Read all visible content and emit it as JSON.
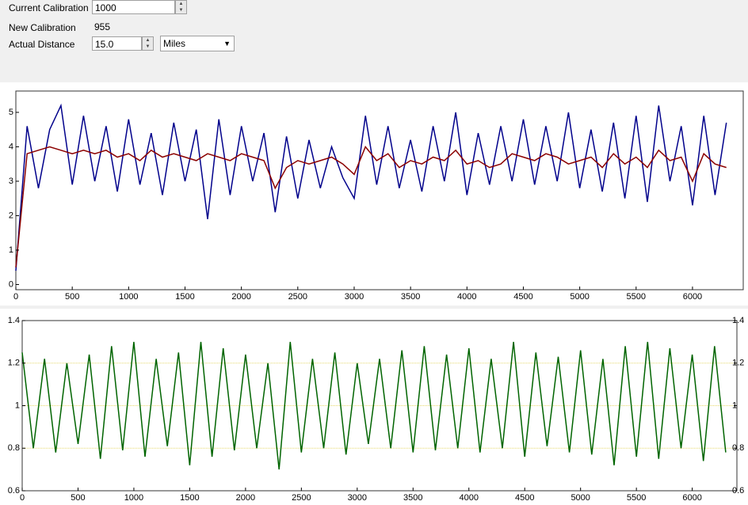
{
  "form": {
    "current_calibration": {
      "label": "Current Calibration",
      "value": "1000"
    },
    "new_calibration": {
      "label": "New Calibration",
      "value": "955"
    },
    "actual_distance": {
      "label": "Actual Distance",
      "value": "15.0",
      "unit": "Miles"
    }
  },
  "chart_data": [
    {
      "type": "line",
      "x": [
        0,
        100,
        200,
        300,
        400,
        500,
        600,
        700,
        800,
        900,
        1000,
        1100,
        1200,
        1300,
        1400,
        1500,
        1600,
        1700,
        1800,
        1900,
        2000,
        2100,
        2200,
        2300,
        2400,
        2500,
        2600,
        2700,
        2800,
        2900,
        3000,
        3100,
        3200,
        3300,
        3400,
        3500,
        3600,
        3700,
        3800,
        3900,
        4000,
        4100,
        4200,
        4300,
        4400,
        4500,
        4600,
        4700,
        4800,
        4900,
        5000,
        5100,
        5200,
        5300,
        5400,
        5500,
        5600,
        5700,
        5800,
        5900,
        6000,
        6100,
        6200,
        6300
      ],
      "series": [
        {
          "color": "#00008b",
          "values": [
            0.4,
            4.6,
            2.8,
            4.5,
            5.2,
            2.9,
            4.9,
            3.0,
            4.6,
            2.7,
            4.8,
            2.9,
            4.4,
            2.6,
            4.7,
            3.0,
            4.5,
            1.9,
            4.8,
            2.6,
            4.6,
            3.0,
            4.4,
            2.1,
            4.3,
            2.5,
            4.2,
            2.8,
            4.0,
            3.1,
            2.5,
            4.9,
            2.9,
            4.6,
            2.8,
            4.2,
            2.7,
            4.6,
            3.0,
            5.0,
            2.6,
            4.4,
            2.9,
            4.6,
            3.0,
            4.8,
            2.9,
            4.6,
            3.0,
            5.0,
            2.8,
            4.5,
            2.7,
            4.7,
            2.5,
            4.9,
            2.4,
            5.2,
            3.0,
            4.6,
            2.3,
            4.9,
            2.6,
            4.7
          ]
        },
        {
          "color": "#8b0000",
          "values": [
            0.5,
            3.8,
            3.9,
            4.0,
            3.9,
            3.8,
            3.9,
            3.8,
            3.9,
            3.7,
            3.8,
            3.6,
            3.9,
            3.7,
            3.8,
            3.7,
            3.6,
            3.8,
            3.7,
            3.6,
            3.8,
            3.7,
            3.6,
            2.8,
            3.4,
            3.6,
            3.5,
            3.6,
            3.7,
            3.5,
            3.2,
            4.0,
            3.6,
            3.8,
            3.4,
            3.6,
            3.5,
            3.7,
            3.6,
            3.9,
            3.5,
            3.6,
            3.4,
            3.5,
            3.8,
            3.7,
            3.6,
            3.8,
            3.7,
            3.5,
            3.6,
            3.7,
            3.4,
            3.8,
            3.5,
            3.7,
            3.4,
            3.9,
            3.6,
            3.7,
            3.0,
            3.8,
            3.5,
            3.4
          ]
        }
      ],
      "xlim": [
        0,
        6450
      ],
      "ylim": [
        -0.15,
        5.62
      ],
      "xticks": [
        0,
        500,
        1000,
        1500,
        2000,
        2500,
        3000,
        3500,
        4000,
        4500,
        5000,
        5500,
        6000
      ],
      "yticks": [
        0,
        1,
        2,
        3,
        4,
        5
      ]
    },
    {
      "type": "line",
      "x": [
        0,
        100,
        200,
        300,
        400,
        500,
        600,
        700,
        800,
        900,
        1000,
        1100,
        1200,
        1300,
        1400,
        1500,
        1600,
        1700,
        1800,
        1900,
        2000,
        2100,
        2200,
        2300,
        2400,
        2500,
        2600,
        2700,
        2800,
        2900,
        3000,
        3100,
        3200,
        3300,
        3400,
        3500,
        3600,
        3700,
        3800,
        3900,
        4000,
        4100,
        4200,
        4300,
        4400,
        4500,
        4600,
        4700,
        4800,
        4900,
        5000,
        5100,
        5200,
        5300,
        5400,
        5500,
        5600,
        5700,
        5800,
        5900,
        6000,
        6100,
        6200,
        6300
      ],
      "series": [
        {
          "color": "#006400",
          "values": [
            1.25,
            0.8,
            1.22,
            0.78,
            1.2,
            0.82,
            1.24,
            0.75,
            1.28,
            0.79,
            1.3,
            0.76,
            1.22,
            0.81,
            1.25,
            0.72,
            1.3,
            0.76,
            1.27,
            0.79,
            1.24,
            0.8,
            1.2,
            0.7,
            1.3,
            0.78,
            1.22,
            0.8,
            1.25,
            0.77,
            1.2,
            0.82,
            1.22,
            0.8,
            1.26,
            0.78,
            1.28,
            0.79,
            1.24,
            0.8,
            1.27,
            0.78,
            1.22,
            0.8,
            1.3,
            0.76,
            1.25,
            0.81,
            1.23,
            0.78,
            1.26,
            0.77,
            1.22,
            0.72,
            1.28,
            0.76,
            1.3,
            0.75,
            1.27,
            0.8,
            1.24,
            0.74,
            1.28,
            0.78
          ]
        }
      ],
      "xlim": [
        0,
        6400
      ],
      "ylim": [
        0.6,
        1.4
      ],
      "y2lim": [
        0.6,
        1.4
      ],
      "xticks": [
        0,
        500,
        1000,
        1500,
        2000,
        2500,
        3000,
        3500,
        4000,
        4500,
        5000,
        5500,
        6000
      ],
      "yticks": [
        0.6,
        0.8,
        1,
        1.2,
        1.4
      ],
      "y2ticks": [
        0.6,
        0.8,
        1,
        1.2,
        1.4
      ],
      "grid": true,
      "grid_color": "#e6d86a"
    }
  ]
}
